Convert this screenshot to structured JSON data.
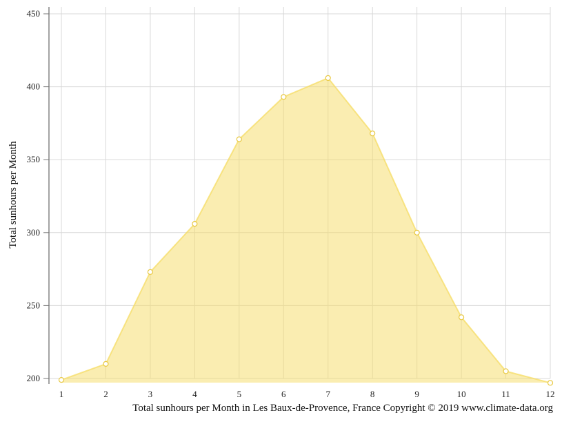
{
  "chart_data": {
    "type": "area",
    "title": "",
    "xlabel": "",
    "ylabel": "Total sunhours per Month",
    "caption": "Total sunhours per Month in Les Baux-de-Provence, France Copyright © 2019 www.climate-data.org",
    "categories": [
      "1",
      "2",
      "3",
      "4",
      "5",
      "6",
      "7",
      "8",
      "9",
      "10",
      "11",
      "12"
    ],
    "y_ticks": [
      "200",
      "250",
      "300",
      "350",
      "400",
      "450"
    ],
    "ylim": [
      200,
      450
    ],
    "grid": true,
    "series": [
      {
        "values": [
          199,
          210,
          273,
          306,
          364,
          393,
          406,
          368,
          300,
          242,
          205,
          197
        ],
        "color": "#f5dc64"
      }
    ]
  }
}
